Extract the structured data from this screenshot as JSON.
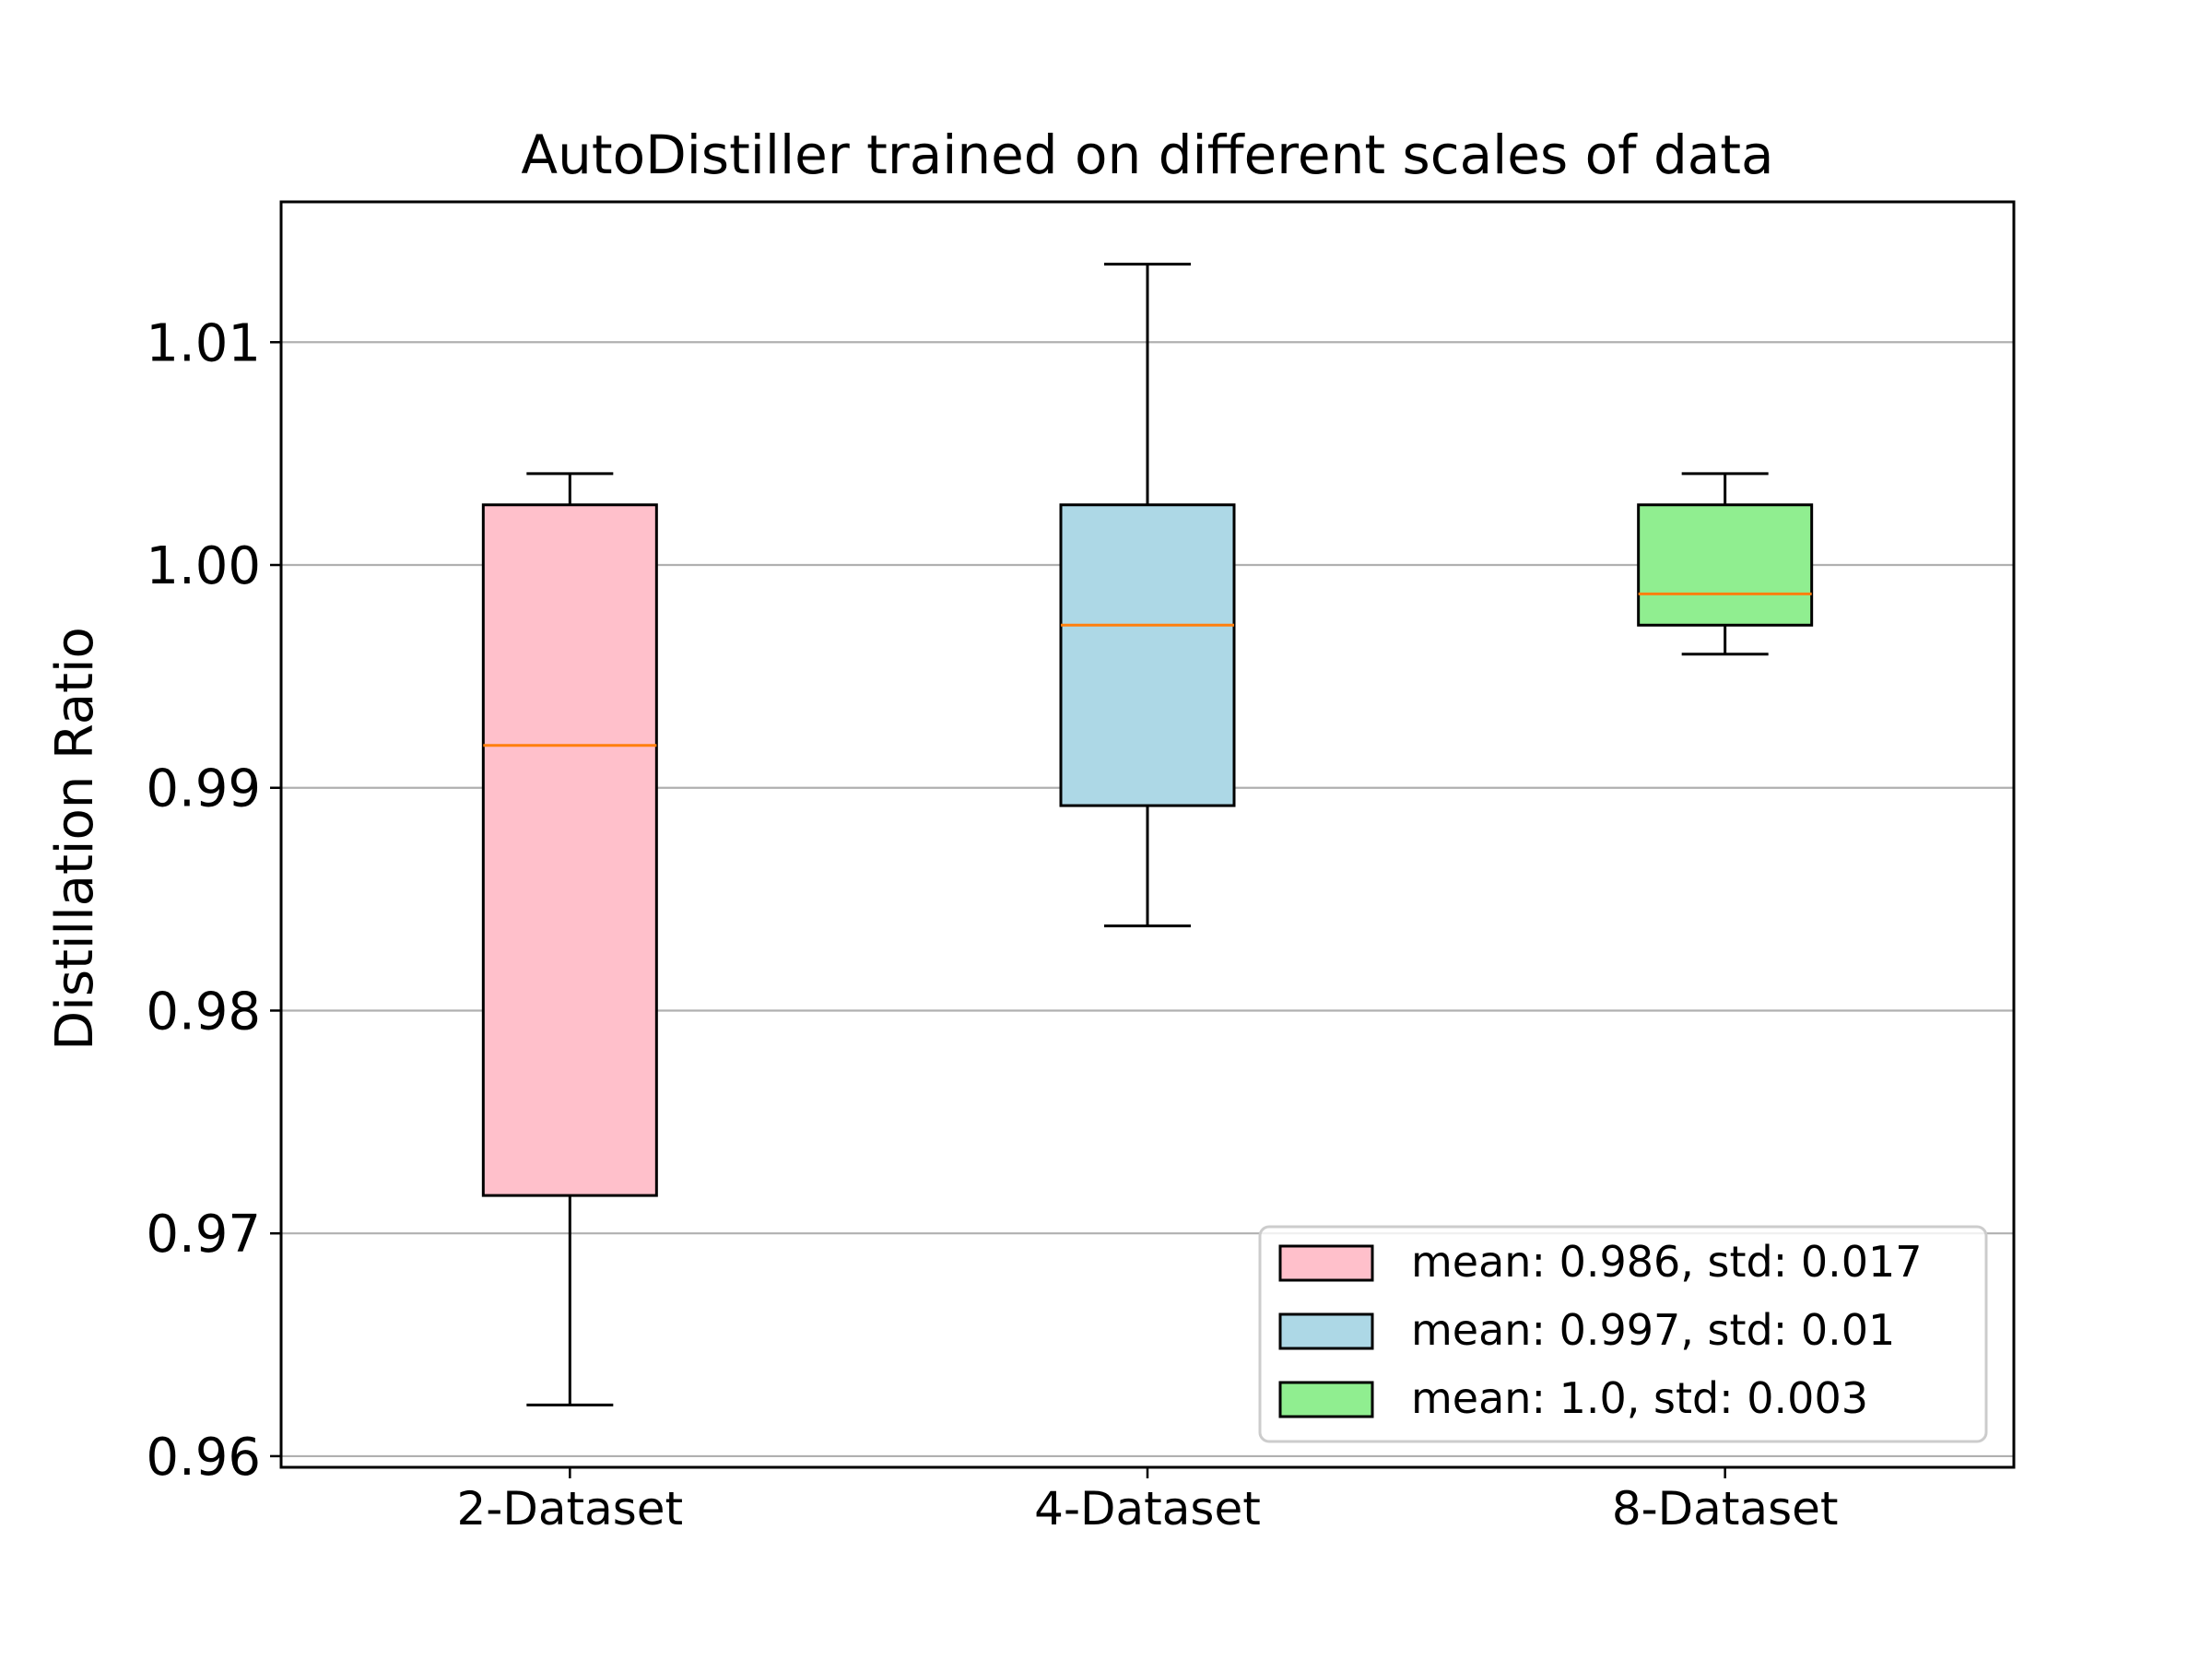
{
  "chart_data": {
    "type": "box",
    "title": "AutoDistiller trained on different scales of data",
    "xlabel": "",
    "ylabel": "Distillation Ratio",
    "ylim": [
      0.9595,
      1.0163
    ],
    "yticks": [
      0.96,
      0.97,
      0.98,
      0.99,
      1.0,
      1.01
    ],
    "ytick_labels": [
      "0.96",
      "0.97",
      "0.98",
      "0.99",
      "1.00",
      "1.01"
    ],
    "grid": "horizontal",
    "legend_position": "lower right",
    "categories": [
      "2-Dataset",
      "4-Dataset",
      "8-Dataset"
    ],
    "boxes": [
      {
        "category": "2-Dataset",
        "whisker_low": 0.9623,
        "q1": 0.9717,
        "median": 0.9919,
        "q3": 1.0027,
        "whisker_high": 1.0041,
        "color": "#ffc0cb",
        "legend": "mean: 0.986, std: 0.017"
      },
      {
        "category": "4-Dataset",
        "whisker_low": 0.9838,
        "q1": 0.9892,
        "median": 0.9973,
        "q3": 1.0027,
        "whisker_high": 1.0135,
        "color": "#add8e6",
        "legend": "mean: 0.997, std: 0.01"
      },
      {
        "category": "8-Dataset",
        "whisker_low": 0.996,
        "q1": 0.9973,
        "median": 0.9987,
        "q3": 1.0027,
        "whisker_high": 1.0041,
        "color": "#90ee90",
        "legend": "mean: 1.0, std: 0.003"
      }
    ],
    "median_color": "#ff7f0e",
    "grid_color": "#b0b0b0"
  }
}
